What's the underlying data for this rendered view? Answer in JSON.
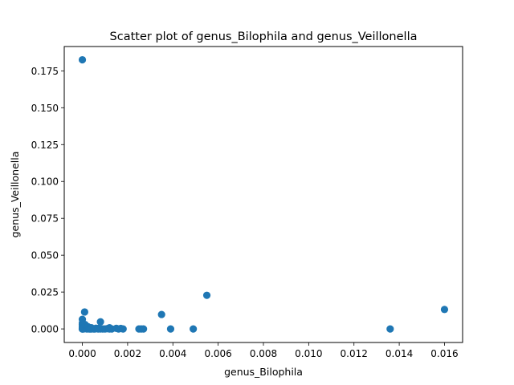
{
  "chart_data": {
    "type": "scatter",
    "title": "Scatter plot of genus_Bilophila and genus_Veillonella",
    "xlabel": "genus_Bilophila",
    "ylabel": "genus_Veillonella",
    "xlim": [
      -0.0008,
      0.0168
    ],
    "ylim": [
      -0.0092,
      0.1915
    ],
    "xticks": [
      0.0,
      0.002,
      0.004,
      0.006,
      0.008,
      0.01,
      0.012,
      0.014,
      0.016
    ],
    "xtick_labels": [
      "0.000",
      "0.002",
      "0.004",
      "0.006",
      "0.008",
      "0.010",
      "0.012",
      "0.014",
      "0.016"
    ],
    "yticks": [
      0.0,
      0.025,
      0.05,
      0.075,
      0.1,
      0.125,
      0.15,
      0.175
    ],
    "ytick_labels": [
      "0.000",
      "0.025",
      "0.050",
      "0.075",
      "0.100",
      "0.125",
      "0.150",
      "0.175"
    ],
    "grid": false,
    "marker_color": "#1f77b4",
    "series": [
      {
        "x": [
          0.0,
          0.0,
          0.0,
          0.0,
          0.0,
          0.0,
          0.0,
          0.0,
          0.0,
          5e-05,
          0.0001,
          0.00012,
          0.00015,
          0.0002,
          0.0002,
          0.00025,
          0.0003,
          0.0003,
          0.00035,
          0.0004,
          0.0004,
          0.0005,
          0.00055,
          0.0006,
          0.0007,
          0.0007,
          0.0008,
          0.0008,
          0.0009,
          0.001,
          0.0011,
          0.0012,
          0.0012,
          0.0013,
          0.0015,
          0.0016,
          0.0017,
          0.0018,
          0.0025,
          0.0026,
          0.0027,
          0.0035,
          0.0039,
          0.0049,
          0.0055,
          0.0136,
          0.016
        ],
        "y": [
          0.1825,
          0.0065,
          0.004,
          0.003,
          0.002,
          0.001,
          0.0005,
          0.0,
          0.0,
          0.0,
          0.0115,
          0.003,
          0.002,
          0.001,
          0.0,
          0.0015,
          0.0005,
          0.0,
          0.0,
          0.0008,
          0.0,
          0.0,
          0.0,
          0.0005,
          0.0,
          0.0003,
          0.0048,
          0.0,
          0.0,
          0.0,
          0.0002,
          0.0008,
          0.0,
          0.0,
          0.0004,
          0.0,
          0.0003,
          0.0,
          0.0,
          0.0,
          0.0,
          0.0098,
          0.0,
          0.0,
          0.0228,
          0.0,
          0.0132
        ]
      }
    ]
  }
}
